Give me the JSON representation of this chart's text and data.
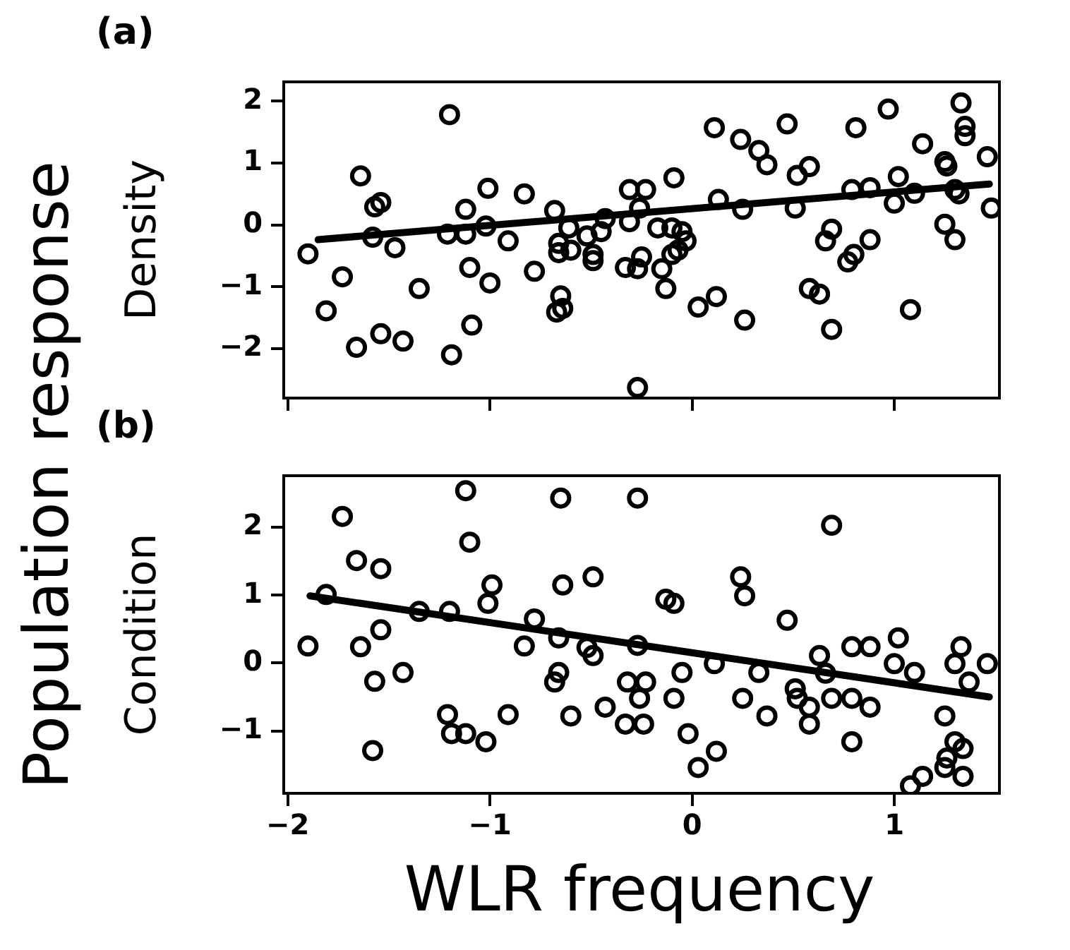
{
  "chart_data": [
    {
      "type": "scatter",
      "title": "(a)",
      "ylabel": "Density",
      "annotations": [
        "Population response"
      ],
      "tick_labels": "y",
      "xlim": [
        -2.02,
        1.52
      ],
      "ylim": [
        -2.8,
        2.31
      ],
      "xticks": [
        -2,
        -1,
        0,
        1
      ],
      "yticks": [
        -2,
        -1,
        0,
        1,
        2
      ],
      "series": [
        {
          "type": "scatter",
          "marker": "circle",
          "color": "#000000",
          "x": [
            -1.9,
            -1.81,
            -1.73,
            -1.66,
            -1.64,
            -1.58,
            -1.57,
            -1.54,
            -1.54,
            -1.47,
            -1.43,
            -1.35,
            -1.2,
            -1.21,
            -1.19,
            -1.12,
            -1.12,
            -1.1,
            -1.09,
            -1.02,
            -1.01,
            -1.0,
            -0.91,
            -0.83,
            -0.78,
            -0.68,
            -0.66,
            -0.66,
            -0.61,
            -0.6,
            -0.65,
            -0.67,
            -0.64,
            -0.52,
            -0.49,
            -0.49,
            -0.45,
            -0.43,
            -0.31,
            -0.23,
            -0.26,
            -0.31,
            -0.17,
            -0.09,
            -0.1,
            -0.05,
            -0.03,
            -0.07,
            -0.1,
            -0.25,
            -0.33,
            -0.27,
            -0.15,
            -0.13,
            0.03,
            0.12,
            0.11,
            0.24,
            0.33,
            0.37,
            0.26,
            0.13,
            0.25,
            0.47,
            0.52,
            0.58,
            0.51,
            0.69,
            0.66,
            0.88,
            0.8,
            0.77,
            0.58,
            0.63,
            0.69,
            -0.27,
            0.79,
            0.88,
            0.81,
            0.97,
            1.02,
            1.0,
            1.1,
            1.14,
            1.25,
            1.26,
            1.33,
            1.35,
            1.35,
            1.46,
            1.3,
            1.32,
            1.25,
            1.3,
            1.08,
            1.48
          ],
          "values": [
            -0.47,
            -1.39,
            -0.84,
            -1.98,
            0.79,
            -0.2,
            0.29,
            0.36,
            -1.76,
            -0.37,
            -1.88,
            -1.03,
            1.78,
            -0.15,
            -2.1,
            0.25,
            -0.15,
            -0.69,
            -1.62,
            -0.02,
            0.59,
            -0.94,
            -0.26,
            0.5,
            -0.75,
            0.23,
            -0.3,
            -0.45,
            -0.05,
            -0.41,
            -1.15,
            -1.41,
            -1.35,
            -0.18,
            -0.48,
            -0.58,
            -0.11,
            0.1,
            0.57,
            0.57,
            0.27,
            0.05,
            -0.05,
            0.76,
            -0.05,
            -0.11,
            -0.26,
            -0.41,
            -0.48,
            -0.52,
            -0.69,
            -0.71,
            -0.71,
            -1.03,
            -1.33,
            -1.16,
            1.57,
            1.38,
            1.2,
            0.97,
            -1.54,
            0.41,
            0.25,
            1.63,
            0.8,
            0.94,
            0.27,
            -0.07,
            -0.26,
            -0.24,
            -0.48,
            -0.6,
            -1.03,
            -1.12,
            -1.69,
            -2.63,
            0.57,
            0.6,
            1.57,
            1.87,
            0.78,
            0.35,
            0.51,
            1.31,
            1.02,
            0.95,
            1.97,
            1.59,
            1.44,
            1.1,
            0.57,
            0.5,
            0.01,
            -0.24,
            -1.37,
            0.27
          ]
        },
        {
          "type": "line",
          "color": "#000000",
          "x": [
            -1.85,
            1.47
          ],
          "values": [
            -0.24,
            0.66
          ]
        }
      ]
    },
    {
      "type": "scatter",
      "title": "(b)",
      "ylabel": "Condition",
      "xlabel": "WLR frequency",
      "xlim": [
        -2.02,
        1.52
      ],
      "ylim": [
        -1.92,
        2.76
      ],
      "xticks": [
        -2,
        -1,
        0,
        1
      ],
      "yticks": [
        -1,
        0,
        1,
        2
      ],
      "series": [
        {
          "type": "scatter",
          "marker": "circle",
          "color": "#000000",
          "x": [
            -1.9,
            -1.81,
            -1.73,
            -1.66,
            -1.64,
            -1.57,
            -1.54,
            -1.54,
            -1.58,
            -1.43,
            -1.35,
            -1.21,
            -1.2,
            -1.19,
            -1.12,
            -1.02,
            -1.12,
            -1.1,
            -0.99,
            -1.01,
            -0.91,
            -0.83,
            -0.78,
            -0.68,
            -0.66,
            -0.65,
            -0.64,
            -0.66,
            -0.49,
            -0.52,
            -0.49,
            -0.6,
            -0.43,
            -0.27,
            -0.27,
            -0.32,
            -0.23,
            -0.26,
            -0.33,
            -0.24,
            -0.13,
            -0.09,
            -0.05,
            -0.09,
            -0.02,
            0.03,
            0.12,
            0.11,
            0.24,
            0.26,
            0.25,
            0.33,
            0.37,
            0.47,
            0.51,
            0.52,
            0.58,
            0.58,
            0.63,
            0.66,
            0.69,
            0.69,
            0.79,
            0.79,
            0.88,
            0.79,
            0.88,
            1.02,
            1.0,
            1.1,
            1.25,
            1.08,
            1.14,
            1.25,
            1.26,
            1.3,
            1.34,
            1.34,
            1.33,
            1.3,
            1.37,
            1.46
          ],
          "values": [
            0.25,
            1.01,
            2.16,
            1.51,
            0.24,
            -0.27,
            1.39,
            0.49,
            -1.29,
            -0.14,
            0.76,
            -0.76,
            0.76,
            -1.04,
            -1.04,
            -1.16,
            2.54,
            1.78,
            1.15,
            0.88,
            -0.76,
            0.25,
            0.65,
            -0.28,
            -0.14,
            2.43,
            1.15,
            0.37,
            1.27,
            0.23,
            0.11,
            -0.78,
            -0.65,
            2.43,
            0.26,
            -0.28,
            -0.28,
            -0.52,
            -0.9,
            -0.9,
            0.94,
            0.88,
            -0.14,
            -0.52,
            -1.04,
            -1.54,
            -1.3,
            -0.01,
            1.27,
            0.99,
            -0.52,
            -0.14,
            -0.78,
            0.63,
            -0.38,
            -0.52,
            -0.65,
            -0.9,
            0.11,
            -0.15,
            2.03,
            -0.52,
            -0.52,
            -1.16,
            -0.65,
            0.24,
            0.24,
            0.37,
            -0.01,
            -0.14,
            -0.78,
            -1.81,
            -1.67,
            -1.54,
            -1.4,
            -1.16,
            -1.26,
            -1.67,
            0.24,
            -0.01,
            -0.28,
            -0.01
          ]
        },
        {
          "type": "line",
          "color": "#000000",
          "x": [
            -1.89,
            1.47
          ],
          "values": [
            0.99,
            -0.5
          ]
        }
      ]
    }
  ]
}
